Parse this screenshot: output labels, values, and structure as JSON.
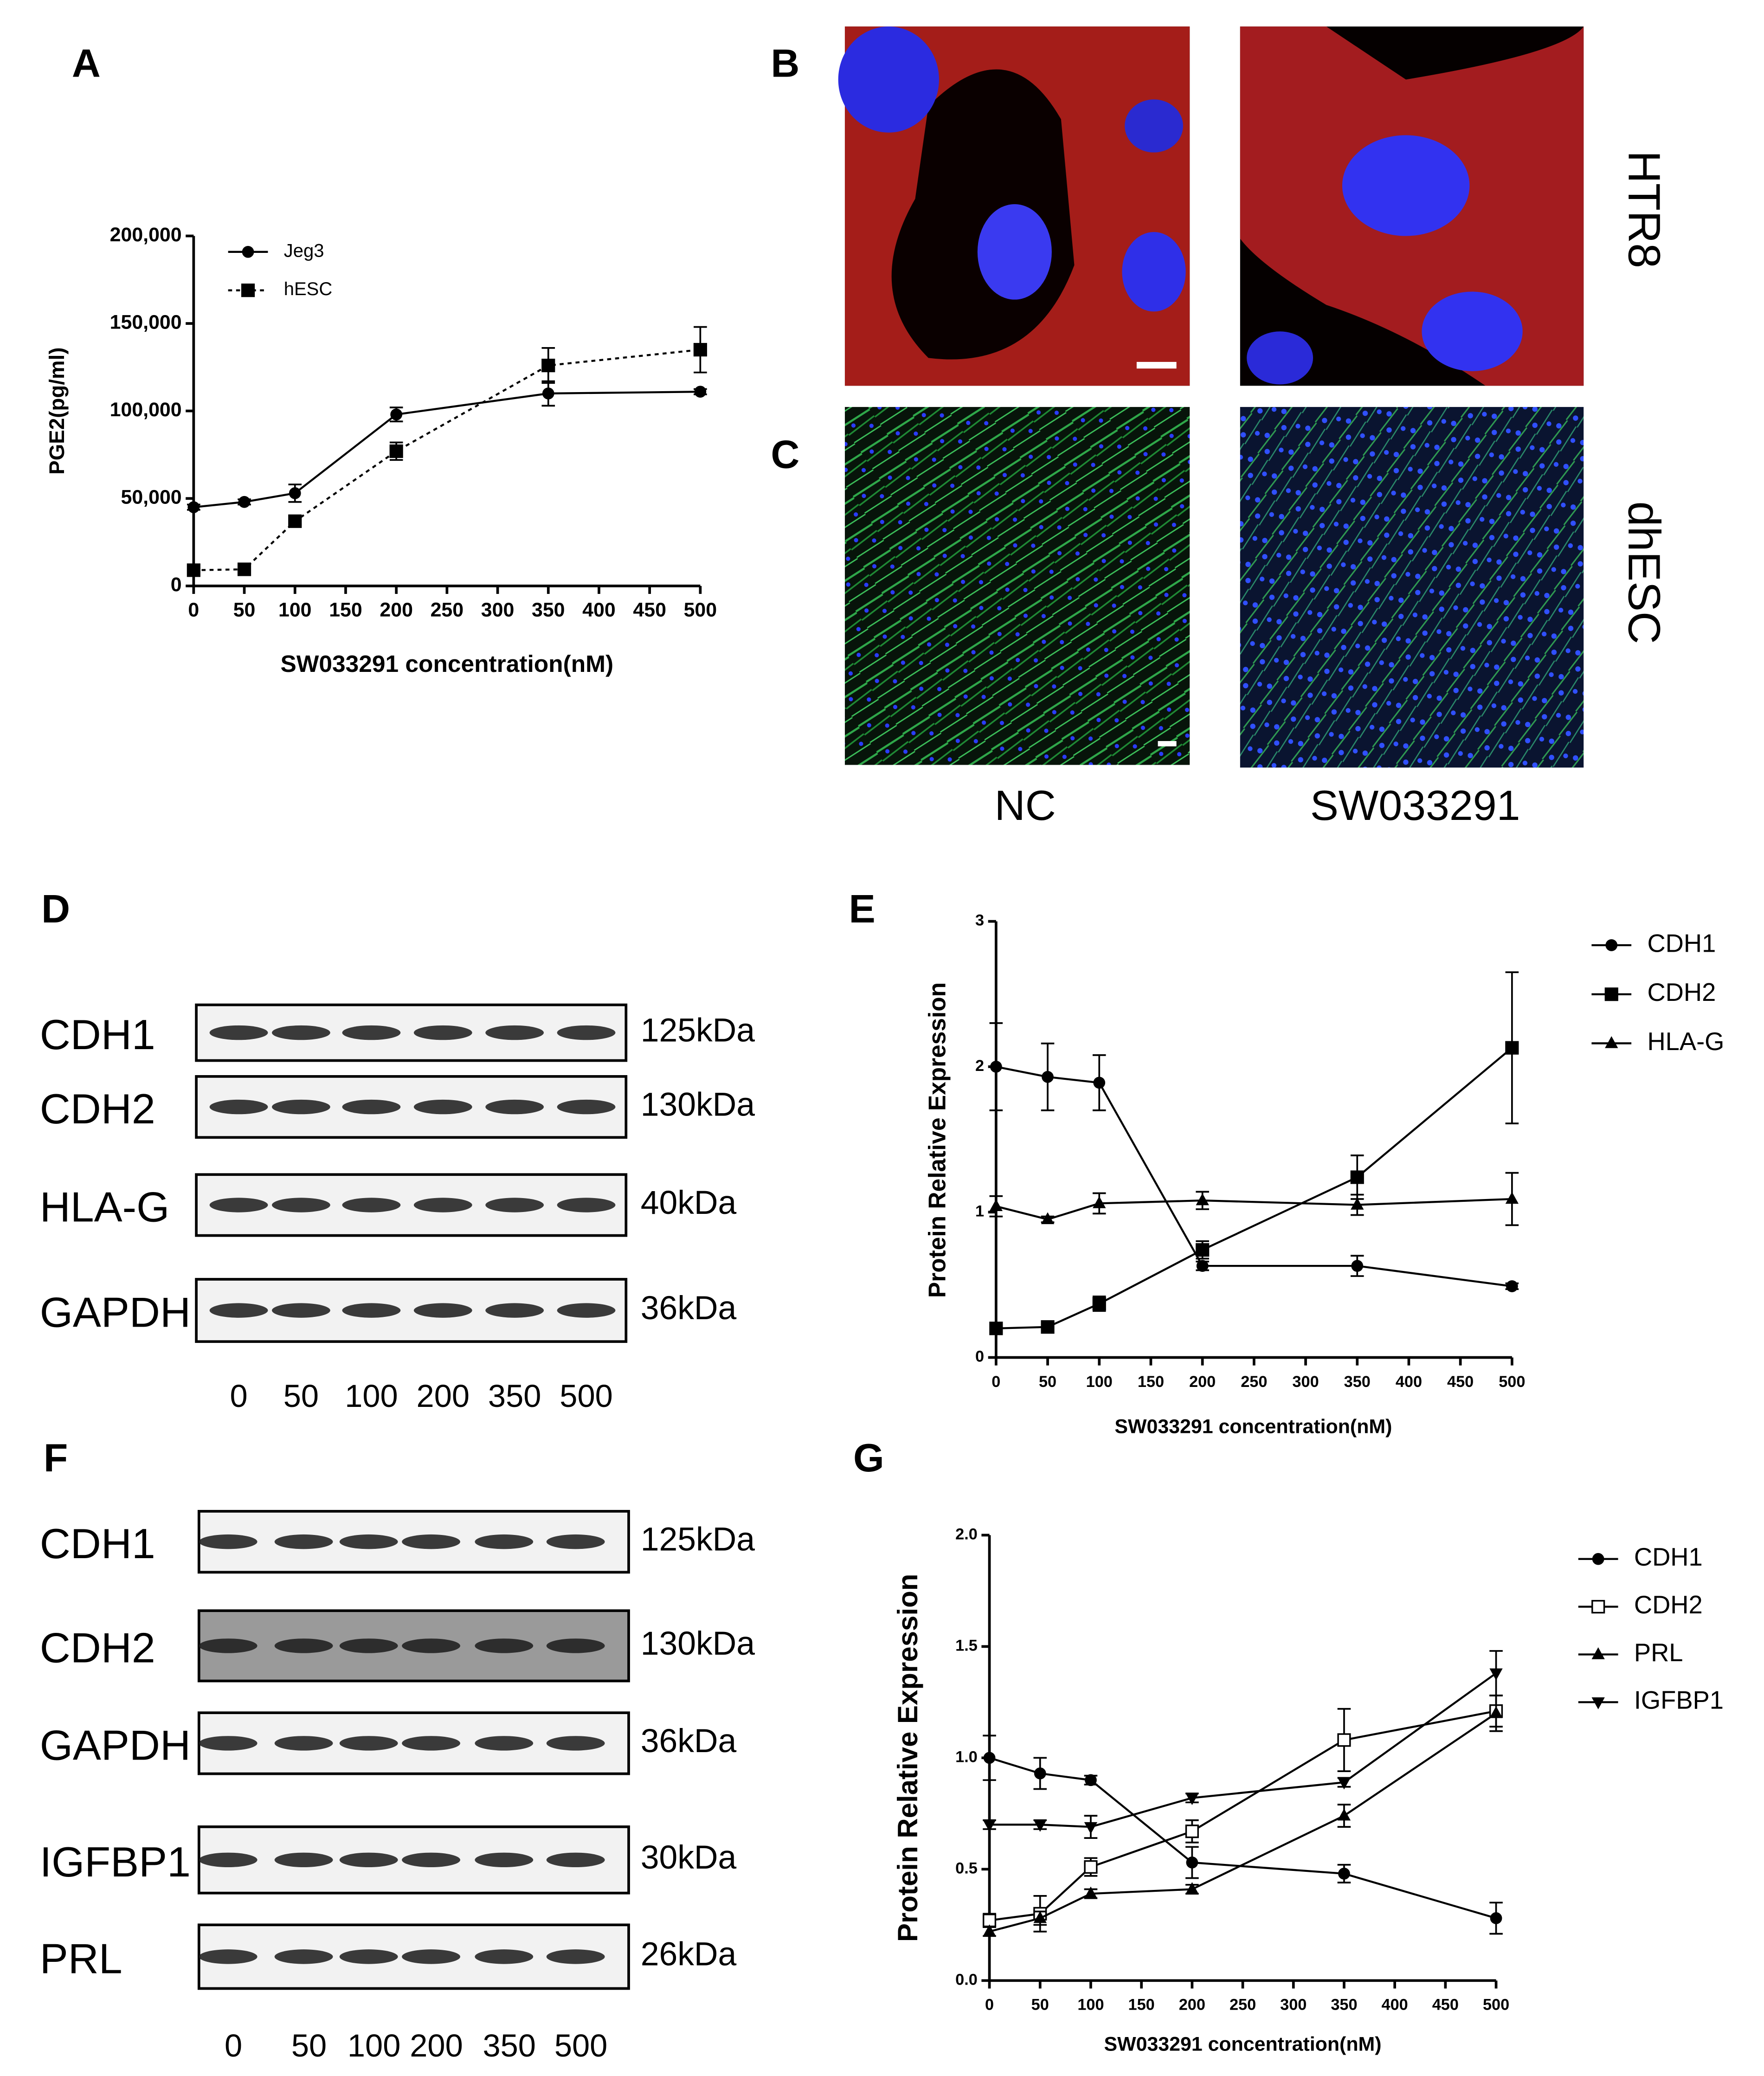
{
  "panel_labels": [
    "A",
    "B",
    "C",
    "D",
    "E",
    "F",
    "G"
  ],
  "images": {
    "rows": [
      "HTR8",
      "dhESC"
    ],
    "columns": [
      "NC",
      "SW033291"
    ]
  },
  "blots": [
    {
      "rows": [
        {
          "protein": "CDH1",
          "size": "125kDa"
        },
        {
          "protein": "CDH2",
          "size": "130kDa"
        },
        {
          "protein": "HLA-G",
          "size": "40kDa"
        },
        {
          "protein": "GAPDH",
          "size": "36kDa"
        }
      ],
      "lanes": [
        "0",
        "50",
        "100",
        "200",
        "350",
        "500"
      ]
    },
    {
      "rows": [
        {
          "protein": "CDH1",
          "size": "125kDa"
        },
        {
          "protein": "CDH2",
          "size": "130kDa"
        },
        {
          "protein": "GAPDH",
          "size": "36kDa"
        },
        {
          "protein": "IGFBP1",
          "size": "30kDa"
        },
        {
          "protein": "PRL",
          "size": "26kDa"
        }
      ],
      "lanes": [
        "0",
        "50",
        "100",
        "200",
        "350",
        "500"
      ]
    }
  ],
  "chart_data": [
    {
      "type": "line",
      "xlabel": "SW033291 concentration(nM)",
      "ylabel": "PGE2(pg/ml)",
      "x": [
        0,
        50,
        100,
        200,
        350,
        500
      ],
      "xlim": [
        0,
        500
      ],
      "xticks": [
        0,
        50,
        100,
        150,
        200,
        250,
        300,
        350,
        400,
        450,
        500
      ],
      "ylim": [
        0,
        200000
      ],
      "yticks": [
        0,
        {
          "value": 50000,
          "label": "50,000"
        },
        {
          "value": 100000,
          "label": "100,000"
        },
        {
          "value": 150000,
          "label": "150,000"
        },
        {
          "value": 200000,
          "label": "200,000"
        }
      ],
      "series": [
        {
          "name": "Jeg3",
          "color": "#000000",
          "marker": "circle",
          "line_style": "solid",
          "values": [
            45000,
            48000,
            53000,
            98000,
            110000,
            111000
          ],
          "errors": [
            1500,
            1500,
            5000,
            4000,
            7000,
            1500
          ]
        },
        {
          "name": "hESC",
          "color": "#000000",
          "marker": "square",
          "line_style": "dashed",
          "values": [
            9000,
            9500,
            37000,
            77000,
            126000,
            135000
          ],
          "errors": [
            1000,
            1000,
            2000,
            5000,
            10000,
            13000
          ]
        }
      ]
    },
    {
      "type": "line",
      "xlabel": "SW033291 concentration(nM)",
      "ylabel": "Protein Relative Expression",
      "x": [
        0,
        50,
        100,
        200,
        350,
        500
      ],
      "xlim": [
        0,
        500
      ],
      "xticks": [
        0,
        50,
        100,
        150,
        200,
        250,
        300,
        350,
        400,
        450,
        500
      ],
      "ylim": [
        0,
        3
      ],
      "yticks": [
        0,
        1,
        2,
        3
      ],
      "series": [
        {
          "name": "CDH1",
          "color": "#000000",
          "marker": "circle",
          "line_style": "solid",
          "values": [
            2.0,
            1.93,
            1.89,
            0.63,
            0.63,
            0.49
          ],
          "errors": [
            0.3,
            0.23,
            0.19,
            0.03,
            0.07,
            0.02
          ]
        },
        {
          "name": "CDH2",
          "color": "#000000",
          "marker": "square",
          "line_style": "solid",
          "values": [
            0.2,
            0.21,
            0.37,
            0.74,
            1.24,
            2.13
          ],
          "errors": [
            0.02,
            0.02,
            0.05,
            0.06,
            0.15,
            0.52
          ]
        },
        {
          "name": "HLA-G",
          "color": "#000000",
          "marker": "triangle",
          "line_style": "solid",
          "values": [
            1.04,
            0.95,
            1.06,
            1.08,
            1.05,
            1.09
          ],
          "errors": [
            0.07,
            0.02,
            0.07,
            0.06,
            0.07,
            0.18
          ]
        }
      ]
    },
    {
      "type": "line",
      "xlabel": "SW033291 concentration(nM)",
      "ylabel": "Protein Relative Expression",
      "x": [
        0,
        50,
        100,
        200,
        350,
        500
      ],
      "xlim": [
        0,
        500
      ],
      "xticks": [
        0,
        50,
        100,
        150,
        200,
        250,
        300,
        350,
        400,
        450,
        500
      ],
      "ylim": [
        0,
        2
      ],
      "yticks": [
        {
          "value": 0,
          "label": "0.0"
        },
        0.5,
        {
          "value": 1,
          "label": "1.0"
        },
        1.5,
        {
          "value": 2,
          "label": "2.0"
        }
      ],
      "series": [
        {
          "name": "CDH1",
          "color": "#000000",
          "marker": "circle",
          "line_style": "solid",
          "values": [
            1.0,
            0.93,
            0.9,
            0.53,
            0.48,
            0.28
          ],
          "errors": [
            0.1,
            0.07,
            0.02,
            0.07,
            0.04,
            0.07
          ]
        },
        {
          "name": "CDH2",
          "color": "#000000",
          "marker": "open-square",
          "line_style": "solid",
          "values": [
            0.27,
            0.3,
            0.51,
            0.67,
            1.08,
            1.21
          ],
          "errors": [
            0.03,
            0.08,
            0.04,
            0.05,
            0.14,
            0.07
          ]
        },
        {
          "name": "PRL",
          "color": "#000000",
          "marker": "triangle",
          "line_style": "solid",
          "values": [
            0.22,
            0.28,
            0.39,
            0.41,
            0.74,
            1.2
          ],
          "errors": [
            0.02,
            0.03,
            0.02,
            0.02,
            0.05,
            0.08
          ]
        },
        {
          "name": "IGFBP1",
          "color": "#000000",
          "marker": "triangle-down",
          "line_style": "solid",
          "values": [
            0.7,
            0.7,
            0.69,
            0.82,
            0.89,
            1.38
          ],
          "errors": [
            0.02,
            0.02,
            0.05,
            0.02,
            0.02,
            0.1
          ]
        }
      ]
    }
  ]
}
